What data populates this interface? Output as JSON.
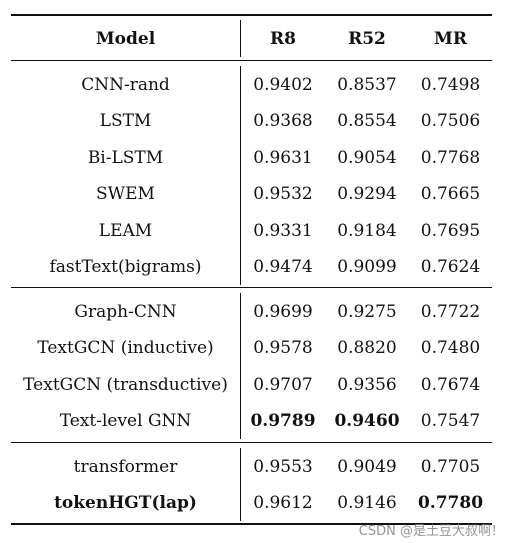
{
  "table": {
    "header": [
      "Model",
      "R8",
      "R52",
      "MR"
    ],
    "groups": [
      [
        {
          "model": "CNN-rand",
          "r8": "0.9402",
          "r52": "0.8537",
          "mr": "0.7498"
        },
        {
          "model": "LSTM",
          "r8": "0.9368",
          "r52": "0.8554",
          "mr": "0.7506"
        },
        {
          "model": "Bi-LSTM",
          "r8": "0.9631",
          "r52": "0.9054",
          "mr": "0.7768"
        },
        {
          "model": "SWEM",
          "r8": "0.9532",
          "r52": "0.9294",
          "mr": "0.7665"
        },
        {
          "model": "LEAM",
          "r8": "0.9331",
          "r52": "0.9184",
          "mr": "0.7695"
        },
        {
          "model": "fastText(bigrams)",
          "r8": "0.9474",
          "r52": "0.9099",
          "mr": "0.7624"
        }
      ],
      [
        {
          "model": "Graph-CNN",
          "r8": "0.9699",
          "r52": "0.9275",
          "mr": "0.7722"
        },
        {
          "model": "TextGCN (inductive)",
          "r8": "0.9578",
          "r52": "0.8820",
          "mr": "0.7480"
        },
        {
          "model": "TextGCN (transductive)",
          "r8": "0.9707",
          "r52": "0.9356",
          "mr": "0.7674"
        },
        {
          "model": "Text-level GNN",
          "r8": "0.9789",
          "r52": "0.9460",
          "mr": "0.7547",
          "bold": [
            "r8",
            "r52"
          ]
        }
      ],
      [
        {
          "model": "transformer",
          "r8": "0.9553",
          "r52": "0.9049",
          "mr": "0.7705"
        },
        {
          "model": "tokenHGT(lap)",
          "r8": "0.9612",
          "r52": "0.9146",
          "mr": "0.7780",
          "bold": [
            "model",
            "mr"
          ]
        }
      ]
    ]
  },
  "watermark": "CSDN @是土豆大叔啊！"
}
